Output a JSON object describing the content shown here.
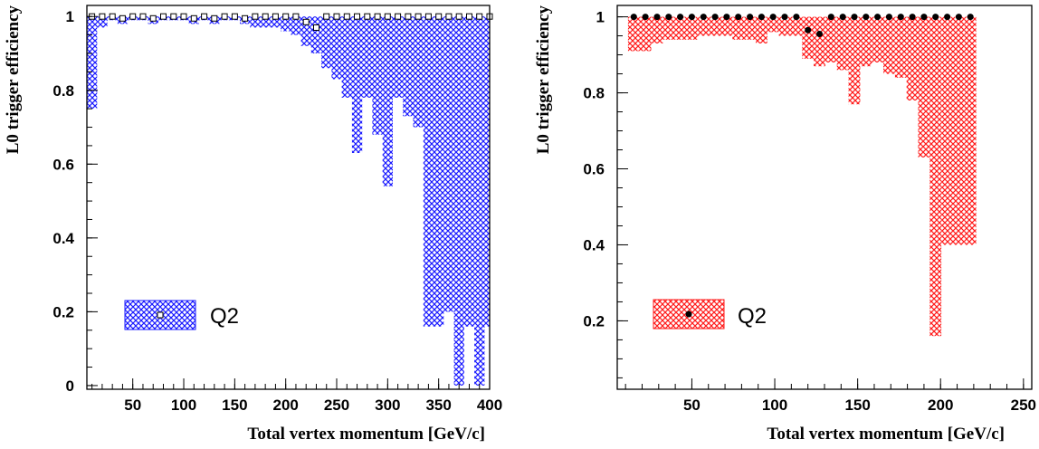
{
  "chart_data": [
    {
      "type": "scatter",
      "title": "",
      "xlabel": "Total vertex momentum [GeV/c]",
      "ylabel": "L0 trigger efficiency",
      "xlim": [
        5,
        400
      ],
      "ylim": [
        -0.01,
        1.03
      ],
      "x_ticks": [
        50,
        100,
        150,
        200,
        250,
        300,
        350,
        400
      ],
      "y_ticks": [
        0,
        0.2,
        0.4,
        0.6,
        0.8,
        1
      ],
      "grid": false,
      "legend_position": "lower-left",
      "band_color": "#1a1aff",
      "marker": "open-square",
      "series": [
        {
          "name": "Q2",
          "x": [
            10,
            20,
            30,
            40,
            50,
            60,
            70,
            80,
            90,
            100,
            110,
            120,
            130,
            140,
            150,
            160,
            170,
            180,
            190,
            200,
            210,
            220,
            230,
            240,
            250,
            260,
            270,
            280,
            290,
            300,
            310,
            320,
            330,
            340,
            350,
            360,
            370,
            380,
            390,
            400
          ],
          "values": [
            1,
            1,
            1,
            0.995,
            1,
            1,
            0.995,
            1,
            1,
            1,
            0.995,
            1,
            0.995,
            1,
            1,
            0.995,
            1,
            1,
            1,
            1,
            1,
            0.985,
            0.97,
            1,
            1,
            1,
            1,
            1,
            1,
            1,
            1,
            1,
            1,
            1,
            1,
            1,
            1,
            1,
            1,
            1
          ],
          "lower": [
            0.75,
            0.97,
            0.99,
            0.98,
            0.99,
            0.99,
            0.98,
            0.99,
            0.99,
            0.99,
            0.98,
            0.99,
            0.98,
            0.99,
            0.99,
            0.98,
            0.97,
            0.97,
            0.97,
            0.96,
            0.95,
            0.92,
            0.9,
            0.86,
            0.83,
            0.78,
            0.63,
            0.78,
            0.68,
            0.54,
            0.78,
            0.73,
            0.7,
            0.16,
            0.16,
            0.2,
            0.0,
            0.16,
            0.0,
            0.16
          ],
          "upper": [
            1,
            1,
            1,
            1,
            1,
            1,
            1,
            1,
            1,
            1,
            1,
            1,
            1,
            1,
            1,
            1,
            1,
            1,
            1,
            1,
            1,
            1,
            1,
            1,
            1,
            1,
            1,
            1,
            1,
            1,
            1,
            1,
            1,
            1,
            1,
            1,
            1,
            1,
            1,
            1
          ]
        }
      ]
    },
    {
      "type": "scatter",
      "title": "",
      "xlabel": "Total vertex momentum [GeV/c]",
      "ylabel": "L0 trigger efficiency",
      "xlim": [
        5,
        255
      ],
      "ylim": [
        0.02,
        1.03
      ],
      "x_ticks": [
        50,
        100,
        150,
        200,
        250
      ],
      "y_ticks": [
        0.2,
        0.4,
        0.6,
        0.8,
        1
      ],
      "grid": false,
      "legend_position": "lower-left",
      "band_color": "#ff1a1a",
      "marker": "filled-circle",
      "series": [
        {
          "name": "Q2",
          "x": [
            15,
            22,
            29,
            36,
            43,
            50,
            57,
            64,
            71,
            78,
            85,
            92,
            99,
            106,
            113,
            120,
            127,
            134,
            141,
            148,
            155,
            162,
            169,
            176,
            183,
            190,
            197,
            204,
            211,
            218
          ],
          "values": [
            1,
            1,
            1,
            1,
            1,
            1,
            1,
            1,
            1,
            1,
            1,
            1,
            1,
            1,
            1,
            0.965,
            0.955,
            1,
            1,
            1,
            1,
            1,
            1,
            1,
            1,
            1,
            1,
            1,
            1,
            1
          ],
          "lower": [
            0.91,
            0.91,
            0.93,
            0.94,
            0.94,
            0.94,
            0.95,
            0.95,
            0.95,
            0.94,
            0.94,
            0.93,
            0.96,
            0.95,
            0.95,
            0.89,
            0.87,
            0.88,
            0.86,
            0.77,
            0.87,
            0.88,
            0.85,
            0.84,
            0.78,
            0.63,
            0.16,
            0.4,
            0.4,
            0.4
          ],
          "upper": [
            1,
            1,
            1,
            1,
            1,
            1,
            1,
            1,
            1,
            1,
            1,
            1,
            1,
            1,
            1,
            1,
            1,
            1,
            1,
            1,
            1,
            1,
            1,
            1,
            1,
            1,
            1,
            1,
            1,
            1
          ]
        }
      ]
    }
  ]
}
